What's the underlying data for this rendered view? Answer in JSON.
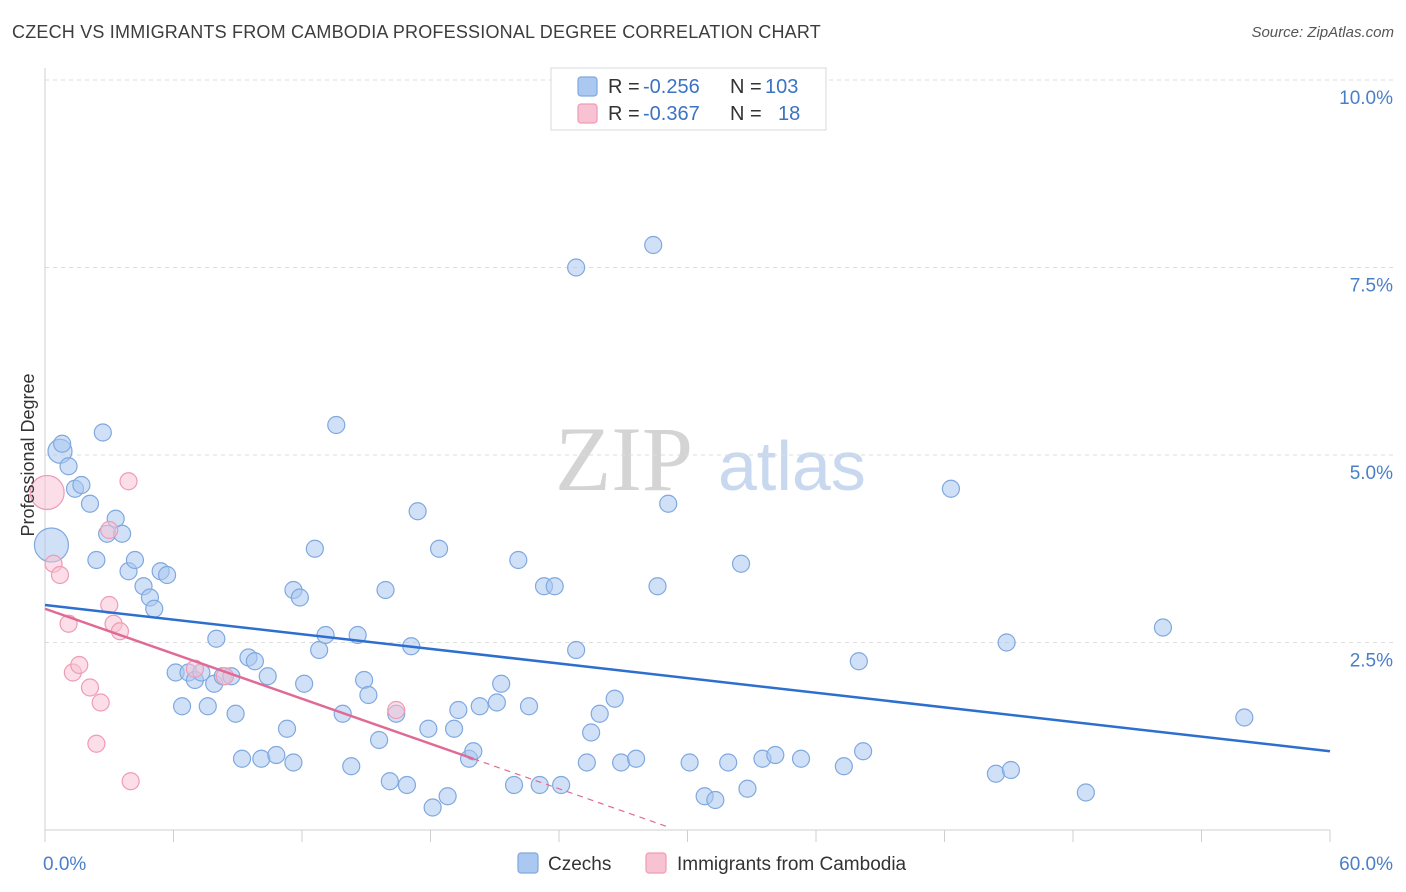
{
  "header": {
    "title": "CZECH VS IMMIGRANTS FROM CAMBODIA PROFESSIONAL DEGREE CORRELATION CHART",
    "source": "Source: ZipAtlas.com"
  },
  "watermark": {
    "zip": "ZIP",
    "atlas": "atlas"
  },
  "colors": {
    "czech": "#7fa8e0",
    "czech_fill": "#aac8f0",
    "czech_line": "#2d6fce",
    "cambodia": "#f09ab5",
    "cambodia_fill": "#f7c3d3",
    "cambodia_line": "#e06a96",
    "tick": "#4a7fc8",
    "grid": "#dcdcdc"
  },
  "legend": {
    "rows": [
      {
        "r_label": "R = ",
        "r_value": "-0.256",
        "n_label": "N = ",
        "n_value": "103"
      },
      {
        "r_label": "R = ",
        "r_value": "-0.367",
        "n_label": "N = ",
        "n_value": "18"
      }
    ]
  },
  "chart_data": {
    "type": "scatter",
    "title": "CZECH VS IMMIGRANTS FROM CAMBODIA PROFESSIONAL DEGREE CORRELATION CHART",
    "xlabel": "",
    "ylabel": "Professional Degree",
    "xlim": [
      0,
      60
    ],
    "ylim": [
      0,
      10
    ],
    "x_tick_labels": [
      "0.0%",
      "60.0%"
    ],
    "y_ticks": [
      2.5,
      5.0,
      7.5,
      10.0
    ],
    "y_tick_labels": [
      "2.5%",
      "5.0%",
      "7.5%",
      "10.0%"
    ],
    "grid": true,
    "legend_position": "top-center",
    "series": [
      {
        "name": "Czechs",
        "trend": {
          "x": [
            0,
            60
          ],
          "y": [
            3.0,
            1.05
          ]
        },
        "points": [
          [
            0.3,
            3.8,
            3
          ],
          [
            0.7,
            5.05,
            2
          ],
          [
            0.8,
            5.15,
            1
          ],
          [
            1.1,
            4.85,
            1
          ],
          [
            1.4,
            4.55,
            1
          ],
          [
            1.7,
            4.6,
            1
          ],
          [
            2.1,
            4.35,
            1
          ],
          [
            2.4,
            3.6,
            1
          ],
          [
            2.7,
            5.3,
            1
          ],
          [
            2.9,
            3.95,
            1
          ],
          [
            3.3,
            4.15,
            1
          ],
          [
            3.6,
            3.95,
            1
          ],
          [
            3.9,
            3.45,
            1
          ],
          [
            4.2,
            3.6,
            1
          ],
          [
            4.6,
            3.25,
            1
          ],
          [
            4.9,
            3.1,
            1
          ],
          [
            5.1,
            2.95,
            1
          ],
          [
            5.4,
            3.45,
            1
          ],
          [
            5.7,
            3.4,
            1
          ],
          [
            6.1,
            2.1,
            1
          ],
          [
            6.4,
            1.65,
            1
          ],
          [
            6.7,
            2.1,
            1
          ],
          [
            7.0,
            2.0,
            1
          ],
          [
            7.3,
            2.1,
            1
          ],
          [
            7.6,
            1.65,
            1
          ],
          [
            7.9,
            1.95,
            1
          ],
          [
            8.0,
            2.55,
            1
          ],
          [
            8.3,
            2.05,
            1
          ],
          [
            8.7,
            2.05,
            1
          ],
          [
            8.9,
            1.55,
            1
          ],
          [
            9.2,
            0.95,
            1
          ],
          [
            9.5,
            2.3,
            1
          ],
          [
            9.8,
            2.25,
            1
          ],
          [
            10.1,
            0.95,
            1
          ],
          [
            10.4,
            2.05,
            1
          ],
          [
            10.8,
            1.0,
            1
          ],
          [
            11.3,
            1.35,
            1
          ],
          [
            11.6,
            0.9,
            1
          ],
          [
            11.6,
            3.2,
            1
          ],
          [
            11.9,
            3.1,
            1
          ],
          [
            12.1,
            1.95,
            1
          ],
          [
            12.6,
            3.75,
            1
          ],
          [
            12.8,
            2.4,
            1
          ],
          [
            13.1,
            2.6,
            1
          ],
          [
            13.6,
            5.4,
            1
          ],
          [
            13.9,
            1.55,
            1
          ],
          [
            14.3,
            0.85,
            1
          ],
          [
            14.6,
            2.6,
            1
          ],
          [
            14.9,
            2.0,
            1
          ],
          [
            15.1,
            1.8,
            1
          ],
          [
            15.6,
            1.2,
            1
          ],
          [
            15.9,
            3.2,
            1
          ],
          [
            16.1,
            0.65,
            1
          ],
          [
            16.4,
            1.55,
            1
          ],
          [
            16.9,
            0.6,
            1
          ],
          [
            17.1,
            2.45,
            1
          ],
          [
            17.4,
            4.25,
            1
          ],
          [
            17.9,
            1.35,
            1
          ],
          [
            18.1,
            0.3,
            1
          ],
          [
            18.4,
            3.75,
            1
          ],
          [
            18.8,
            0.45,
            1
          ],
          [
            19.1,
            1.35,
            1
          ],
          [
            19.3,
            1.6,
            1
          ],
          [
            19.8,
            0.95,
            1
          ],
          [
            20.0,
            1.05,
            1
          ],
          [
            20.3,
            1.65,
            1
          ],
          [
            21.1,
            1.7,
            1
          ],
          [
            21.3,
            1.95,
            1
          ],
          [
            21.9,
            0.6,
            1
          ],
          [
            22.1,
            3.6,
            1
          ],
          [
            22.6,
            1.65,
            1
          ],
          [
            23.1,
            0.6,
            1
          ],
          [
            23.3,
            3.25,
            1
          ],
          [
            23.8,
            3.25,
            1
          ],
          [
            24.1,
            0.6,
            1
          ],
          [
            25.3,
            0.9,
            1
          ],
          [
            24.8,
            7.5,
            1
          ],
          [
            24.8,
            2.4,
            1
          ],
          [
            25.5,
            1.3,
            1
          ],
          [
            25.9,
            1.55,
            1
          ],
          [
            26.6,
            1.75,
            1
          ],
          [
            26.9,
            0.9,
            1
          ],
          [
            27.6,
            0.95,
            1
          ],
          [
            28.4,
            7.8,
            1
          ],
          [
            28.6,
            3.25,
            1
          ],
          [
            29.1,
            4.35,
            1
          ],
          [
            30.1,
            0.9,
            1
          ],
          [
            30.8,
            0.45,
            1
          ],
          [
            31.3,
            0.4,
            1
          ],
          [
            31.9,
            0.9,
            1
          ],
          [
            32.5,
            3.55,
            1
          ],
          [
            32.8,
            0.55,
            1
          ],
          [
            33.5,
            0.95,
            1
          ],
          [
            35.9,
            9.85,
            1
          ],
          [
            34.1,
            1.0,
            1
          ],
          [
            35.3,
            0.95,
            1
          ],
          [
            37.3,
            0.85,
            1
          ],
          [
            38.0,
            2.25,
            1
          ],
          [
            38.2,
            1.05,
            1
          ],
          [
            42.3,
            4.55,
            1
          ],
          [
            44.4,
            0.75,
            1
          ],
          [
            45.1,
            0.8,
            1
          ],
          [
            48.6,
            0.5,
            1
          ],
          [
            52.2,
            2.7,
            1
          ],
          [
            56.0,
            1.5,
            1
          ],
          [
            44.9,
            2.5,
            1
          ]
        ]
      },
      {
        "name": "Immigrants from Cambodia",
        "trend": {
          "x": [
            0,
            20
          ],
          "y": [
            2.95,
            0.95
          ]
        },
        "trend_dashed": {
          "x": [
            20,
            29
          ],
          "y": [
            0.95,
            0.05
          ]
        },
        "points": [
          [
            0.1,
            4.5,
            3
          ],
          [
            0.4,
            3.55,
            1
          ],
          [
            0.7,
            3.4,
            1
          ],
          [
            1.1,
            2.75,
            1
          ],
          [
            1.3,
            2.1,
            1
          ],
          [
            1.6,
            2.2,
            1
          ],
          [
            2.1,
            1.9,
            1
          ],
          [
            2.4,
            1.15,
            1
          ],
          [
            2.6,
            1.7,
            1
          ],
          [
            3.0,
            4.0,
            1
          ],
          [
            3.0,
            3.0,
            1
          ],
          [
            3.2,
            2.75,
            1
          ],
          [
            3.5,
            2.65,
            1
          ],
          [
            3.9,
            4.65,
            1
          ],
          [
            4.0,
            0.65,
            1
          ],
          [
            7.0,
            2.15,
            1
          ],
          [
            8.4,
            2.05,
            1
          ],
          [
            16.4,
            1.6,
            1
          ]
        ]
      }
    ]
  },
  "bottom_legend": {
    "czech": "Czechs",
    "cambodia": "Immigrants from Cambodia"
  }
}
